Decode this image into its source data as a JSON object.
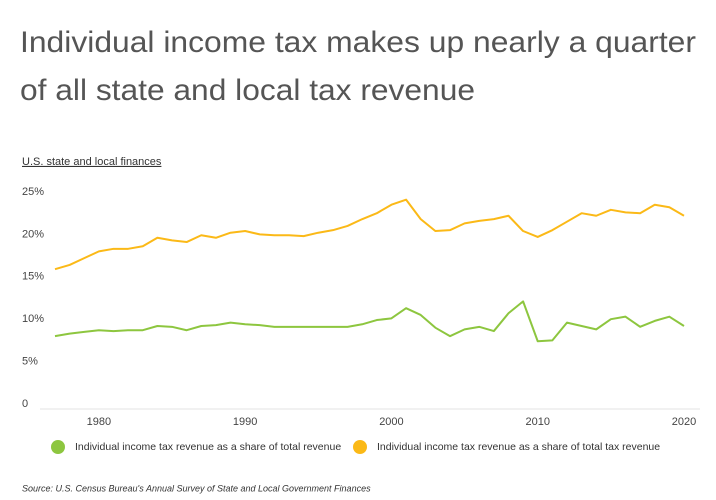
{
  "chart_data": {
    "type": "line",
    "title": [
      "Individual income tax makes up nearly a quarter",
      "of all state and local tax revenue"
    ],
    "subtitle": "U.S. state and local finances",
    "source": "Source:  U.S. Census Bureau's Annual Survey of State and Local Government Finances",
    "x": [
      1977,
      1978,
      1979,
      1980,
      1981,
      1982,
      1983,
      1984,
      1985,
      1986,
      1987,
      1988,
      1989,
      1990,
      1991,
      1992,
      1993,
      1994,
      1995,
      1996,
      1997,
      1998,
      1999,
      2000,
      2001,
      2002,
      2003,
      2004,
      2005,
      2006,
      2007,
      2008,
      2009,
      2010,
      2011,
      2012,
      2013,
      2014,
      2015,
      2016,
      2017,
      2018,
      2019,
      2020
    ],
    "series": [
      {
        "name": "Individual income tax revenue as a share of total revenue",
        "color": "#8dc63f",
        "values": [
          8.0,
          8.3,
          8.5,
          8.7,
          8.6,
          8.7,
          8.7,
          9.2,
          9.1,
          8.7,
          9.2,
          9.3,
          9.6,
          9.4,
          9.3,
          9.1,
          9.1,
          9.1,
          9.1,
          9.1,
          9.1,
          9.4,
          9.9,
          10.1,
          11.3,
          10.5,
          9.0,
          8.0,
          8.8,
          9.1,
          8.6,
          10.7,
          12.1,
          7.4,
          7.5,
          9.6,
          9.2,
          8.8,
          10.0,
          10.3,
          9.1,
          9.8,
          10.3,
          9.2
        ]
      },
      {
        "name": "Individual income tax revenue as a share of total tax revenue",
        "color": "#fbb917",
        "values": [
          15.9,
          16.4,
          17.2,
          18.0,
          18.3,
          18.3,
          18.6,
          19.6,
          19.3,
          19.1,
          19.9,
          19.6,
          20.2,
          20.4,
          20.0,
          19.9,
          19.9,
          19.8,
          20.2,
          20.5,
          21.0,
          21.8,
          22.5,
          23.5,
          24.1,
          21.8,
          20.4,
          20.5,
          21.3,
          21.6,
          21.8,
          22.2,
          20.4,
          19.7,
          20.5,
          21.5,
          22.5,
          22.2,
          22.9,
          22.6,
          22.5,
          23.5,
          23.2,
          22.2
        ]
      }
    ],
    "xlim": [
      1977,
      2020
    ],
    "xticks": [
      1980,
      1990,
      2000,
      2010,
      2020
    ],
    "ylim": [
      0,
      25
    ],
    "yticks": [
      0,
      {
        "value": 5,
        "label": "5%"
      },
      {
        "value": 10,
        "label": "10%"
      },
      {
        "value": 15,
        "label": "15%"
      },
      {
        "value": 20,
        "label": "20%"
      },
      {
        "value": 25,
        "label": "25%"
      }
    ],
    "grid": false
  }
}
